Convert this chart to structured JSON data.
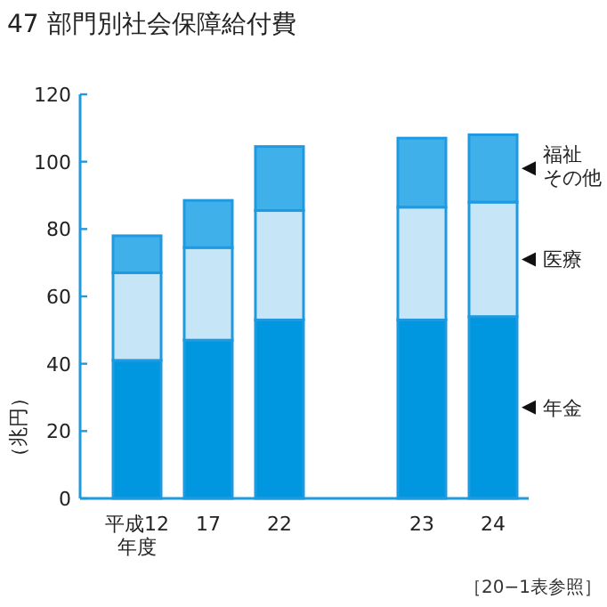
{
  "chart_data": {
    "type": "bar",
    "stacked": true,
    "title": "47 部門別社会保障給付費",
    "ylabel": "（兆円）",
    "categories": [
      "平成12年度",
      "17",
      "22",
      null,
      "23",
      "24"
    ],
    "series": [
      {
        "name": "年金",
        "color": "#0096e0",
        "values": [
          41,
          47,
          53,
          null,
          53,
          54
        ]
      },
      {
        "name": "医療",
        "color": "#c6e6f8",
        "values": [
          26,
          27.5,
          32.5,
          null,
          33.5,
          34
        ]
      },
      {
        "name": "福祉その他",
        "color": "#40b0ea",
        "values": [
          11,
          14,
          19,
          null,
          20.5,
          20
        ]
      }
    ],
    "ylim": [
      0,
      120
    ],
    "yticks": [
      0,
      20,
      40,
      60,
      80,
      100,
      120
    ],
    "legend": "right",
    "grid": false,
    "annotations": [
      "［20−1表参照］"
    ]
  }
}
